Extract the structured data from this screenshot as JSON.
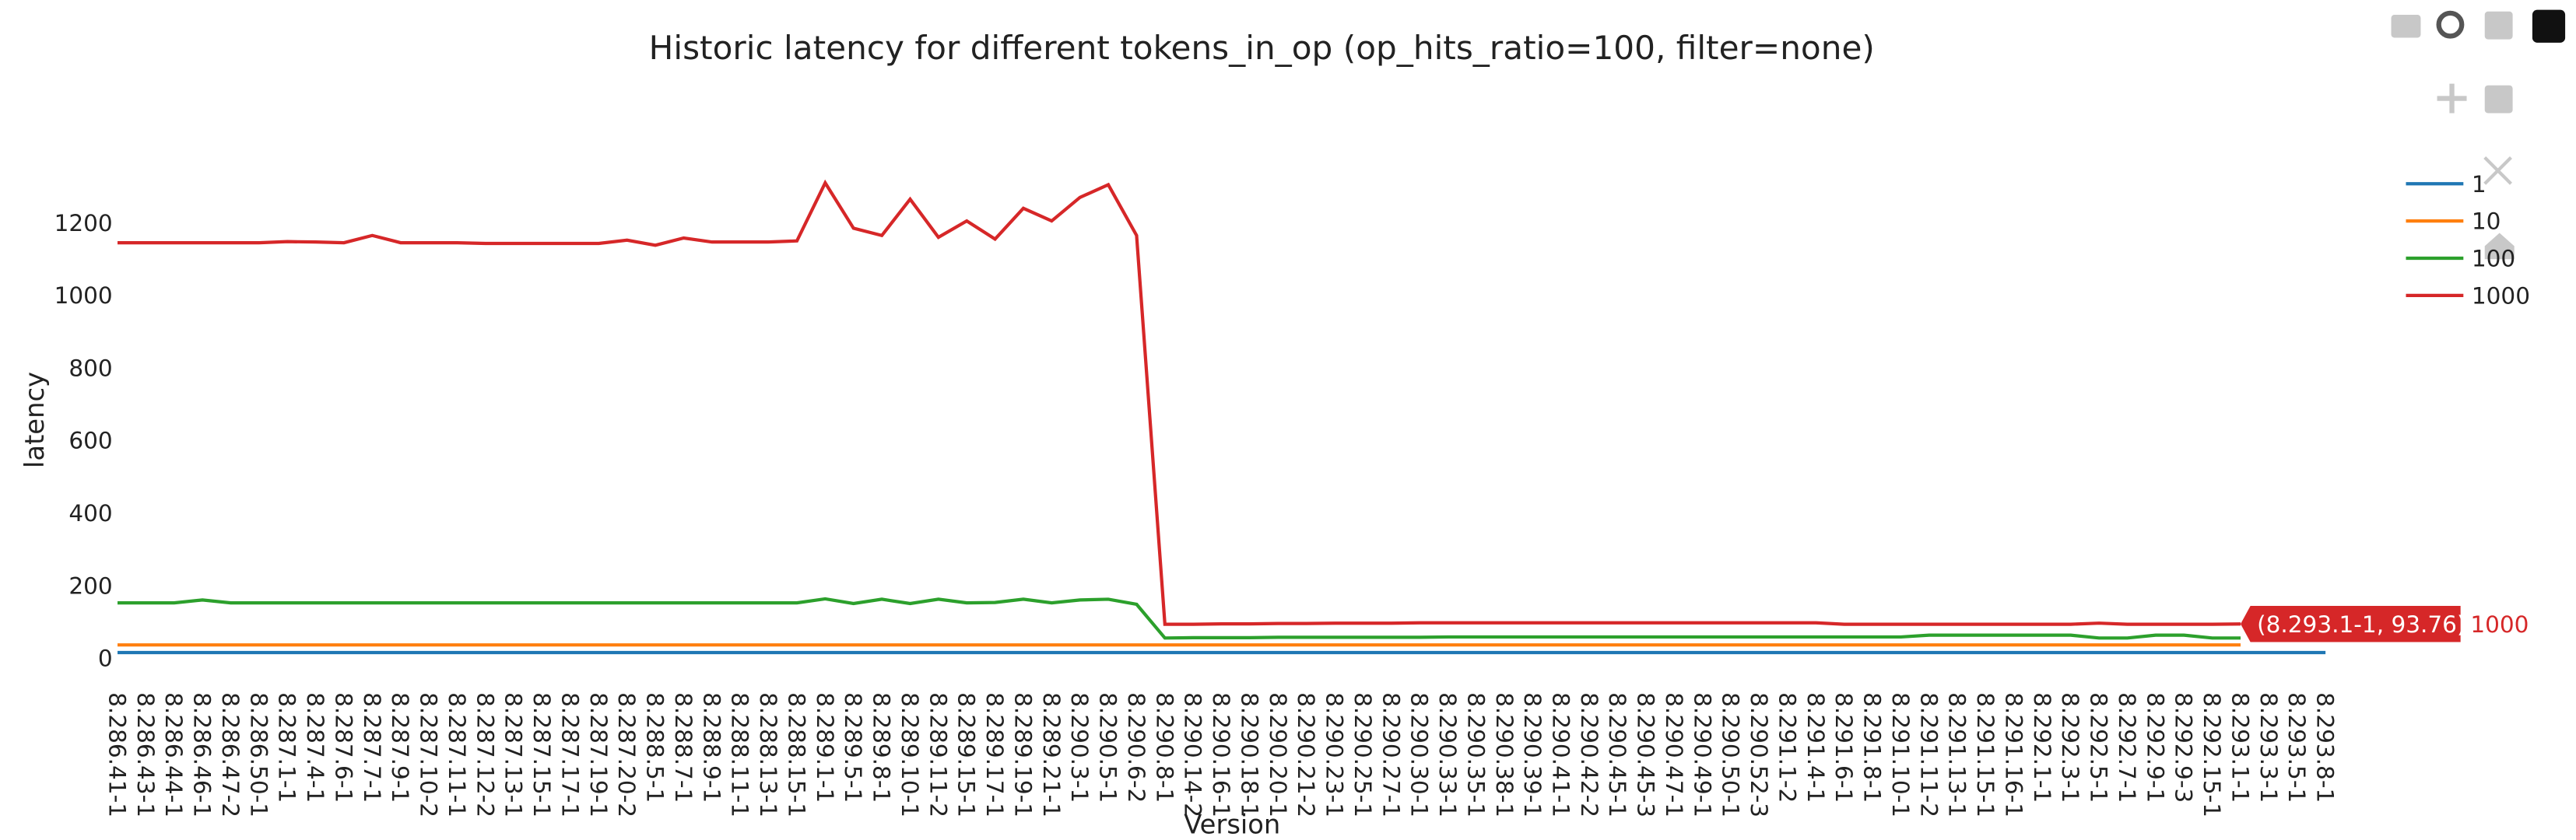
{
  "chart_data": {
    "type": "line",
    "title": "Historic latency for different tokens_in_op (op_hits_ratio=100, filter=none)",
    "x_label": "Version",
    "y_label": "latency",
    "grid": false,
    "legend_position": "right",
    "ylim": [
      -45,
      1380
    ],
    "yticks": [
      0,
      200,
      400,
      600,
      800,
      1000,
      1200
    ],
    "categories": [
      "8.286.41-1",
      "8.286.43-1",
      "8.286.44-1",
      "8.286.46-1",
      "8.286.47-2",
      "8.286.50-1",
      "8.287.1-1",
      "8.287.4-1",
      "8.287.6-1",
      "8.287.7-1",
      "8.287.9-1",
      "8.287.10-2",
      "8.287.11-1",
      "8.287.12-2",
      "8.287.13-1",
      "8.287.15-1",
      "8.287.17-1",
      "8.287.19-1",
      "8.287.20-2",
      "8.288.5-1",
      "8.288.7-1",
      "8.288.9-1",
      "8.288.11-1",
      "8.288.13-1",
      "8.288.15-1",
      "8.289.1-1",
      "8.289.5-1",
      "8.289.8-1",
      "8.289.10-1",
      "8.289.11-2",
      "8.289.15-1",
      "8.289.17-1",
      "8.289.19-1",
      "8.289.21-1",
      "8.290.3-1",
      "8.290.5-1",
      "8.290.6-2",
      "8.290.8-1",
      "8.290.14-2",
      "8.290.16-1",
      "8.290.18-1",
      "8.290.20-1",
      "8.290.21-2",
      "8.290.23-1",
      "8.290.25-1",
      "8.290.27-1",
      "8.290.30-1",
      "8.290.33-1",
      "8.290.35-1",
      "8.290.38-1",
      "8.290.39-1",
      "8.290.41-1",
      "8.290.42-2",
      "8.290.45-1",
      "8.290.45-3",
      "8.290.47-1",
      "8.290.49-1",
      "8.290.50-1",
      "8.290.52-3",
      "8.291.1-2",
      "8.291.4-1",
      "8.291.6-1",
      "8.291.8-1",
      "8.291.10-1",
      "8.291.11-2",
      "8.291.13-1",
      "8.291.15-1",
      "8.291.16-1",
      "8.292.1-1",
      "8.292.3-1",
      "8.292.5-1",
      "8.292.7-1",
      "8.292.9-1",
      "8.292.9-3",
      "8.292.15-1",
      "8.293.1-1",
      "8.293.3-1",
      "8.293.5-1",
      "8.293.8-1"
    ],
    "series": [
      {
        "name": "1",
        "color": "#1f77b4",
        "values": [
          15,
          15,
          15,
          15,
          15,
          15,
          15,
          15,
          15,
          15,
          15,
          15,
          15,
          15,
          15,
          15,
          15,
          15,
          15,
          15,
          15,
          15,
          15,
          15,
          15,
          15,
          15,
          15,
          15,
          15,
          15,
          15,
          15,
          15,
          15,
          15,
          15,
          15,
          15,
          15,
          15,
          15,
          15,
          15,
          15,
          15,
          15,
          15,
          15,
          15,
          15,
          15,
          15,
          15,
          15,
          15,
          15,
          15,
          15,
          15,
          15,
          15,
          15,
          15,
          15,
          15,
          15,
          15,
          15,
          15,
          15,
          15,
          15,
          15,
          15,
          15,
          15,
          15,
          15
        ]
      },
      {
        "name": "10",
        "color": "#ff7f0e",
        "values": [
          36,
          36,
          36,
          36,
          36,
          36,
          36,
          36,
          36,
          36,
          36,
          36,
          36,
          36,
          36,
          36,
          36,
          36,
          36,
          36,
          36,
          36,
          36,
          36,
          36,
          36,
          36,
          36,
          36,
          36,
          36,
          36,
          36,
          36,
          36,
          36,
          36,
          36,
          36,
          36,
          36,
          36,
          36,
          36,
          36,
          36,
          36,
          36,
          36,
          36,
          36,
          36,
          36,
          36,
          36,
          36,
          36,
          36,
          36,
          36,
          36,
          36,
          36,
          36,
          36,
          36,
          36,
          36,
          36,
          36,
          36,
          36,
          36,
          36,
          36,
          36,
          null,
          null,
          null
        ]
      },
      {
        "name": "100",
        "color": "#2ca02c",
        "values": [
          152,
          152,
          152,
          160,
          152,
          152,
          152,
          152,
          152,
          152,
          152,
          152,
          152,
          152,
          152,
          152,
          152,
          152,
          152,
          152,
          152,
          152,
          152,
          152,
          152,
          163,
          150,
          162,
          150,
          162,
          152,
          153,
          162,
          152,
          160,
          162,
          148,
          55,
          56,
          56,
          56,
          57,
          57,
          57,
          57,
          57,
          57,
          58,
          58,
          58,
          58,
          58,
          58,
          58,
          58,
          58,
          58,
          58,
          58,
          58,
          58,
          58,
          58,
          58,
          63,
          63,
          63,
          63,
          63,
          63,
          55,
          55,
          63,
          63,
          55,
          55,
          null,
          null,
          null
        ]
      },
      {
        "name": "1000",
        "color": "#d62728",
        "values": [
          1145,
          1145,
          1145,
          1145,
          1145,
          1145,
          1148,
          1147,
          1145,
          1165,
          1145,
          1145,
          1145,
          1143,
          1143,
          1143,
          1143,
          1143,
          1152,
          1138,
          1158,
          1147,
          1147,
          1147,
          1150,
          1310,
          1185,
          1165,
          1265,
          1160,
          1205,
          1155,
          1240,
          1205,
          1270,
          1305,
          1165,
          93,
          93,
          94,
          94,
          95,
          95,
          96,
          96,
          96,
          97,
          97,
          97,
          97,
          97,
          97,
          97,
          97,
          97,
          97,
          97,
          97,
          97,
          97,
          97,
          93,
          93,
          93,
          93,
          93,
          93,
          93,
          93,
          93,
          96,
          93,
          93,
          93,
          93,
          93.76,
          null,
          null,
          null
        ]
      }
    ],
    "hover_label": "(8.293.1-1, 93.76)"
  }
}
